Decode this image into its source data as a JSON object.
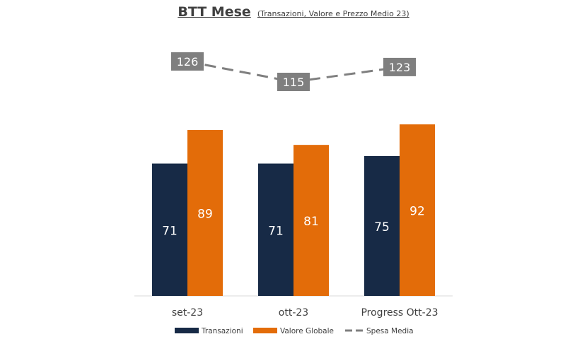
{
  "chart_data": {
    "type": "bar",
    "title": "BTT Mese",
    "subtitle": "(Transazioni, Valore e Prezzo Medio 23)",
    "categories": [
      "set-23",
      "ott-23",
      "Progress Ott-23"
    ],
    "series": [
      {
        "name": "Transazioni",
        "type": "bar",
        "color": "#172a46",
        "values": [
          71,
          71,
          75
        ]
      },
      {
        "name": "Valore Globale",
        "type": "bar",
        "color": "#e36c09",
        "values": [
          89,
          81,
          92
        ]
      },
      {
        "name": "Spesa Media",
        "type": "line",
        "style": "dashed",
        "color": "#7f7f7f",
        "values": [
          126,
          115,
          123
        ]
      }
    ],
    "ylim": [
      0,
      100
    ],
    "line_ylim": [
      90,
      130
    ],
    "grid": false,
    "legend": "bottom",
    "colors": {
      "label_box": "#7f7f7f",
      "axis": "#d9d9d9",
      "text": "#404040"
    }
  }
}
